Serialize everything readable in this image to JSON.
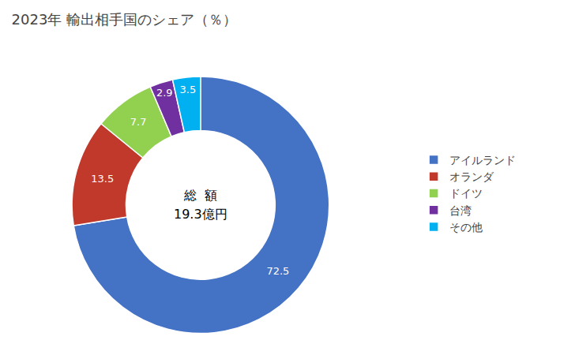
{
  "chart_data": {
    "type": "donut",
    "title": "2023年 輸出相手国のシェア（％）",
    "categories": [
      "アイルランド",
      "オランダ",
      "ドイツ",
      "台湾",
      "その他"
    ],
    "values": [
      72.5,
      13.5,
      7.7,
      2.9,
      3.5
    ],
    "colors": [
      "#4472C4",
      "#C0392B",
      "#92D050",
      "#7030A0",
      "#00B0F0"
    ],
    "data_labels": true,
    "legend": "right",
    "annotations": [
      "総  額",
      "19.3億円"
    ]
  }
}
